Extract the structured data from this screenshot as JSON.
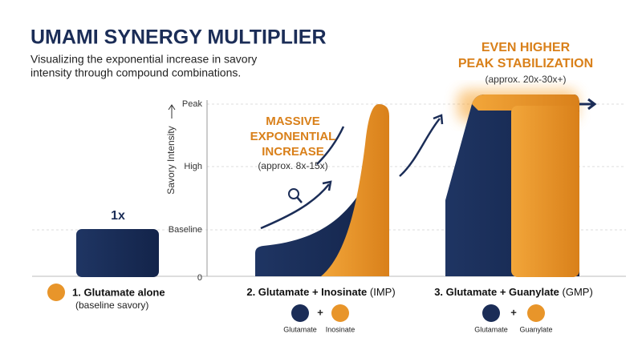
{
  "header": {
    "title": "UMAMI SYNERGY MULTIPLIER",
    "subtitle_lines": [
      "Visualizing the exponential increase in savory",
      "intensity through compound combinations."
    ]
  },
  "y_axis": {
    "title": "Savory Intensity",
    "ticks": [
      "Peak",
      "High",
      "Baseline",
      "0"
    ]
  },
  "stage1": {
    "value_label": "1x",
    "label": "1. Glutamate alone",
    "sublabel": "(baseline savory)"
  },
  "stage2": {
    "annotation_lines": [
      "MASSIVE",
      "EXPONENTIAL",
      "INCREASE"
    ],
    "annotation_note": "(approx. 8x-15x)",
    "label": "2. Glutamate + Inosinate",
    "label_suffix": "(IMP)",
    "icons": [
      "Glutamate",
      "+",
      "Inosinate"
    ]
  },
  "stage3": {
    "annotation_lines": [
      "EVEN HIGHER",
      "PEAK STABILIZATION"
    ],
    "annotation_note": "(approx. 20x-30x+)",
    "label": "3. Glutamate + Guanylate",
    "label_suffix": "(GMP)",
    "icons": [
      "Glutamate",
      "+",
      "Guanylate"
    ]
  }
}
